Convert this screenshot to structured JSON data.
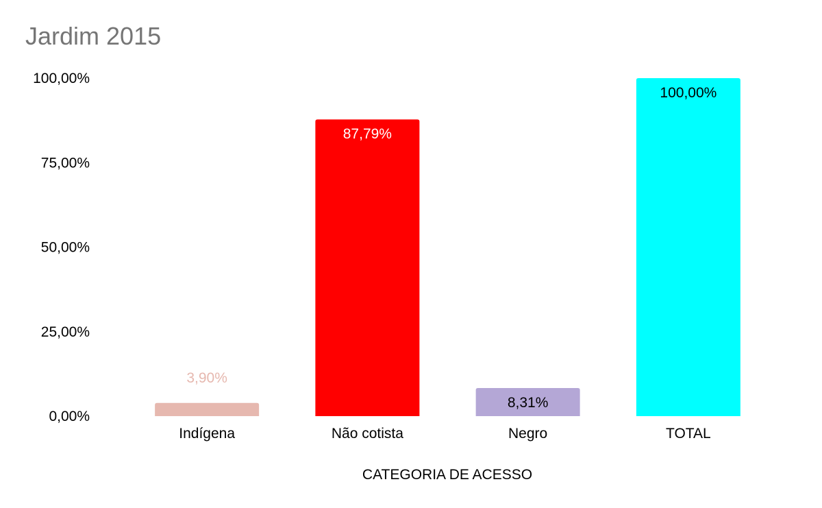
{
  "chart_data": {
    "type": "bar",
    "title": "Jardim 2015",
    "xlabel": "CATEGORIA DE ACESSO",
    "ylabel": "",
    "ylim": [
      0,
      100
    ],
    "yticks": [
      "0,00%",
      "25,00%",
      "50,00%",
      "75,00%",
      "100,00%"
    ],
    "ytick_values": [
      0,
      25,
      50,
      75,
      100
    ],
    "categories": [
      "Indígena",
      "Não cotista",
      "Negro",
      "TOTAL"
    ],
    "values": [
      3.9,
      87.79,
      8.31,
      100.0
    ],
    "data_labels": [
      "3,90%",
      "87,79%",
      "8,31%",
      "100,00%"
    ],
    "colors": [
      "#e6b8af",
      "#ff0000",
      "#b4a7d6",
      "#00ffff"
    ],
    "label_colors": [
      "#e6b8af",
      "#ffffff",
      "#000000",
      "#000000"
    ],
    "grid": false,
    "legend": "none"
  }
}
